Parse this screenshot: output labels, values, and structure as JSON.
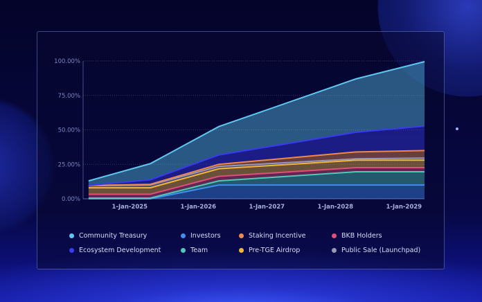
{
  "chart_data": {
    "type": "area",
    "stacked": true,
    "title": "",
    "xlabel": "",
    "ylabel": "",
    "x": [
      2024.4,
      2025.3,
      2026.3,
      2028.3,
      2029.3
    ],
    "xticks": [
      {
        "value": 2025,
        "label": "1-Jan-2025"
      },
      {
        "value": 2026,
        "label": "1-Jan-2026"
      },
      {
        "value": 2027,
        "label": "1-Jan-2027"
      },
      {
        "value": 2028,
        "label": "1-Jan-2028"
      },
      {
        "value": 2029,
        "label": "1-Jan-2029"
      }
    ],
    "yticks": [
      {
        "value": 0,
        "label": "0.00%"
      },
      {
        "value": 25,
        "label": "25.00%"
      },
      {
        "value": 50,
        "label": "50.00%"
      },
      {
        "value": 75,
        "label": "75.00%"
      },
      {
        "value": 100,
        "label": "100.00%"
      }
    ],
    "ylim": [
      0,
      100
    ],
    "grid": true,
    "legend_placement": "bottom",
    "series": [
      {
        "name": "Investors",
        "color": "#3f8ff0",
        "values": [
          0,
          0,
          10,
          10,
          10
        ]
      },
      {
        "name": "Team",
        "color": "#4fc9b8",
        "values": [
          0.5,
          0.5,
          3,
          9.6,
          9.6
        ]
      },
      {
        "name": "BKB Holders",
        "color": "#e0507a",
        "values": [
          2.8,
          2.8,
          3.3,
          3,
          3
        ]
      },
      {
        "name": "Pre-TGE Airdrop",
        "color": "#f5b53a",
        "values": [
          4.7,
          4.7,
          5.5,
          5.4,
          5.4
        ]
      },
      {
        "name": "Public Sale (Launchpad)",
        "color": "#9a98b8",
        "values": [
          1.5,
          2,
          1.7,
          1,
          1.5
        ]
      },
      {
        "name": "Staking Incentive",
        "color": "#f0884a",
        "values": [
          0.2,
          0.5,
          1.5,
          5,
          5.5
        ]
      },
      {
        "name": "Ecosystem Development",
        "color": "#3a3af0",
        "values": [
          0,
          3.3,
          6.8,
          14.3,
          17.7
        ]
      },
      {
        "name": "Community Treasury",
        "color": "#5ec8f0",
        "values": [
          3.3,
          11.7,
          20.6,
          38.7,
          46.8
        ]
      }
    ],
    "legend_order": [
      "Community Treasury",
      "Investors",
      "Staking Incentive",
      "BKB Holders",
      "Ecosystem Development",
      "Team",
      "Pre-TGE Airdrop",
      "Public Sale (Launchpad)"
    ]
  }
}
